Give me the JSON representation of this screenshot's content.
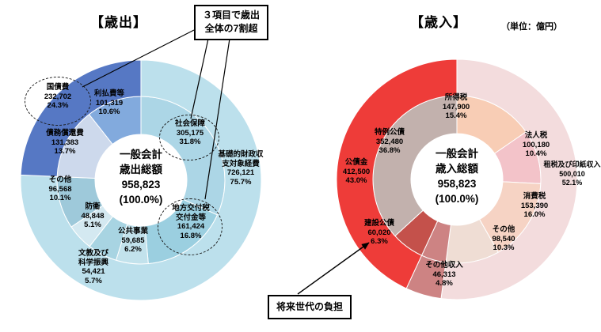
{
  "unit_note": "（単位：億円）",
  "callouts": {
    "three_items": [
      "３項目で歳出",
      "全体の7割超"
    ],
    "future_burden": "将来世代の負担"
  },
  "chart_data": [
    {
      "type": "donut",
      "title": "【歳出】",
      "unit": "億円",
      "total": 958823,
      "center_label": [
        "一般会計",
        "歳出総額",
        "958,823",
        "(100.0%)"
      ],
      "inner_ring": [
        {
          "id": "social-security",
          "name": "社会保障",
          "value": "305,175",
          "pct": 31.8,
          "pct_label": "31.8%",
          "color": "#acd6e6",
          "highlighted": true
        },
        {
          "id": "local-allocation-tax",
          "name": "地方交付税\n交付金等",
          "value": "161,424",
          "pct": 16.8,
          "pct_label": "16.8%",
          "color": "#9bcfe0",
          "highlighted": true
        },
        {
          "id": "public-works",
          "name": "公共事業",
          "value": "59,685",
          "pct": 6.2,
          "pct_label": "6.2%",
          "color": "#c2e2ec"
        },
        {
          "id": "education-science",
          "name": "文教及び\n科学振興",
          "value": "54,421",
          "pct": 5.7,
          "pct_label": "5.7%",
          "color": "#a8d4e2"
        },
        {
          "id": "defense",
          "name": "防衛",
          "value": "48,848",
          "pct": 5.1,
          "pct_label": "5.1%",
          "color": "#d4e9f1"
        },
        {
          "id": "others-expenditure",
          "name": "その他",
          "value": "96,568",
          "pct": 10.1,
          "pct_label": "10.1%",
          "color": "#9ec9da"
        },
        {
          "id": "debt-redemption",
          "name": "債務償還費",
          "value": "131,383",
          "pct": 13.7,
          "pct_label": "13.7%",
          "color": "#cdd9ec"
        },
        {
          "id": "interest-payments",
          "name": "利払費等",
          "value": "101,319",
          "pct": 10.6,
          "pct_label": "10.6%",
          "color": "#82aadd"
        }
      ],
      "outer_ring": [
        {
          "id": "primary-balance-expenses",
          "name": "基礎的財政収\n支対象経費",
          "value": "726,121",
          "pct": 75.7,
          "pct_label": "75.7%",
          "color": "#bce0ec"
        },
        {
          "id": "national-debt-service",
          "name": "国債費",
          "value": "232,702",
          "pct": 24.3,
          "pct_label": "24.3%",
          "color": "#5678c4",
          "highlighted": true
        }
      ]
    },
    {
      "type": "donut",
      "title": "【歳入】",
      "unit": "億円",
      "total": 958823,
      "center_label": [
        "一般会計",
        "歳入総額",
        "958,823",
        "(100.0%)"
      ],
      "inner_ring": [
        {
          "id": "income-tax",
          "name": "所得税",
          "value": "147,900",
          "pct": 15.4,
          "pct_label": "15.4%",
          "color": "#f8cdb5"
        },
        {
          "id": "corporate-tax",
          "name": "法人税",
          "value": "100,180",
          "pct": 10.4,
          "pct_label": "10.4%",
          "color": "#f3c3c9"
        },
        {
          "id": "consumption-tax",
          "name": "消費税",
          "value": "153,390",
          "pct": 16.0,
          "pct_label": "16.0%",
          "color": "#f6d3c4"
        },
        {
          "id": "others-revenue",
          "name": "その他",
          "value": "98,540",
          "pct": 10.3,
          "pct_label": "10.3%",
          "color": "#efddd4"
        },
        {
          "id": "other-revenues",
          "name": "その他収入",
          "value": "46,313",
          "pct": 4.8,
          "pct_label": "4.8%",
          "color": "#cd8383"
        },
        {
          "id": "construction-bonds",
          "name": "建設公債",
          "value": "60,020",
          "pct": 6.3,
          "pct_label": "6.3%",
          "color": "#c4514b"
        },
        {
          "id": "special-deficit-bonds",
          "name": "特例公債",
          "value": "352,480",
          "pct": 36.8,
          "pct_label": "36.8%",
          "color": "#c2b1ad"
        }
      ],
      "outer_ring": [
        {
          "id": "tax-and-stamp-revenues",
          "name": "租税及び印紙収入",
          "value": "500,010",
          "pct": 52.1,
          "pct_label": "52.1%",
          "color": "#f3dcdd"
        },
        {
          "id": "other-revenues-outer",
          "name": "その他収入",
          "pct": 4.8,
          "color": "#cd8383"
        },
        {
          "id": "government-bonds",
          "name": "公債金",
          "value": "412,500",
          "pct": 43.0,
          "pct_label": "43.0%",
          "color": "#ee3c39"
        }
      ]
    }
  ]
}
